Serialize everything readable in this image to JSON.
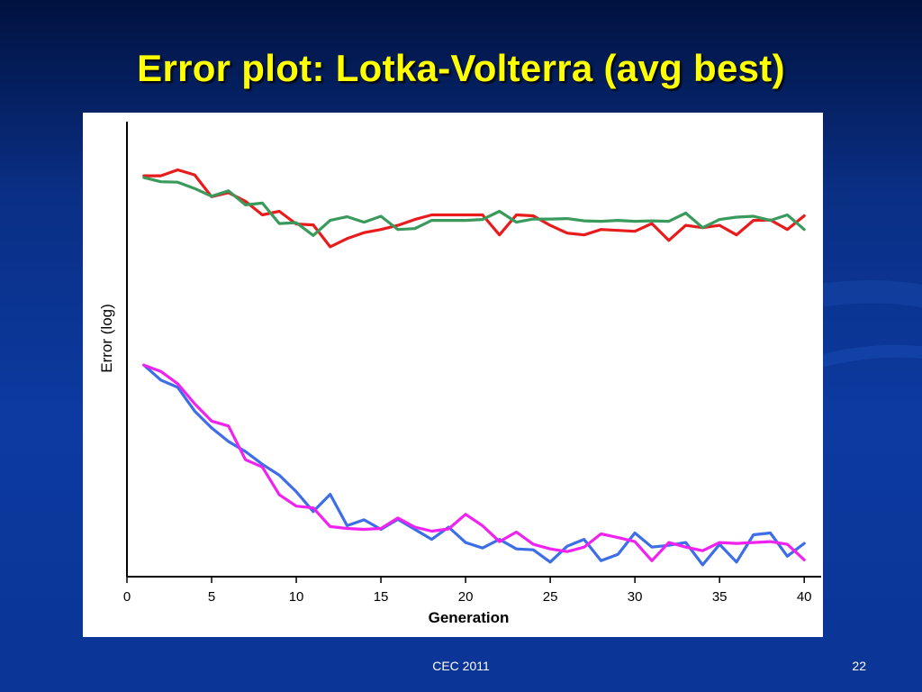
{
  "slide": {
    "title": "Error plot: Lotka-Volterra (avg best)",
    "footer": "CEC 2011",
    "page_number": "22"
  },
  "chart_data": {
    "type": "line",
    "title": "",
    "xlabel": "Generation",
    "ylabel": "Error (log)",
    "xlim": [
      0,
      41
    ],
    "ylim": [
      0,
      100
    ],
    "xticks": [
      0,
      5,
      10,
      15,
      20,
      25,
      30,
      35,
      40
    ],
    "yticks": [],
    "grid": false,
    "legend": "none",
    "series": [
      {
        "color": "#e81c1c",
        "x": [
          1,
          2,
          3,
          4,
          5,
          6,
          7,
          8,
          9,
          10,
          11,
          12,
          13,
          14,
          15,
          16,
          17,
          18,
          19,
          20,
          21,
          22,
          23,
          24,
          25,
          26,
          27,
          28,
          29,
          30,
          31,
          32,
          33,
          34,
          35,
          36,
          37,
          38,
          39,
          40
        ],
        "y": [
          88.1,
          88.1,
          89.4,
          88.3,
          83.5,
          84.4,
          82.5,
          79.5,
          80.3,
          77.5,
          77.3,
          72.5,
          74.3,
          75.6,
          76.3,
          77.2,
          78.5,
          79.5,
          79.5,
          79.5,
          79.5,
          75.1,
          79.5,
          79.3,
          77.2,
          75.5,
          75.1,
          76.3,
          76.1,
          75.9,
          77.6,
          73.9,
          77.2,
          76.7,
          77.2,
          75.1,
          78.3,
          78.4,
          76.3,
          79.3
        ]
      },
      {
        "color": "#3a9a5c",
        "x": [
          1,
          2,
          3,
          4,
          5,
          6,
          7,
          8,
          9,
          10,
          11,
          12,
          13,
          14,
          15,
          16,
          17,
          18,
          19,
          20,
          21,
          22,
          23,
          24,
          25,
          26,
          27,
          28,
          29,
          30,
          31,
          32,
          33,
          34,
          35,
          36,
          37,
          38,
          39,
          40
        ],
        "y": [
          87.7,
          86.8,
          86.7,
          85.3,
          83.6,
          84.8,
          81.7,
          82.1,
          77.6,
          77.8,
          75.0,
          78.3,
          79.1,
          77.9,
          79.2,
          76.3,
          76.5,
          78.3,
          78.3,
          78.3,
          78.5,
          80.3,
          77.9,
          78.6,
          78.6,
          78.7,
          78.2,
          78.1,
          78.3,
          78.1,
          78.2,
          78.1,
          79.9,
          76.7,
          78.5,
          79.0,
          79.2,
          78.3,
          79.5,
          76.3
        ]
      },
      {
        "color": "#3d6ee8",
        "x": [
          1,
          2,
          3,
          4,
          5,
          6,
          7,
          8,
          9,
          10,
          11,
          12,
          13,
          14,
          15,
          16,
          17,
          18,
          19,
          20,
          21,
          22,
          23,
          24,
          25,
          26,
          27,
          28,
          29,
          30,
          31,
          32,
          33,
          34,
          35,
          36,
          37,
          38,
          39,
          40
        ],
        "y": [
          46.5,
          43.2,
          41.6,
          36.4,
          32.7,
          29.7,
          27.5,
          24.7,
          22.3,
          18.7,
          14.3,
          18.1,
          11.2,
          12.5,
          10.4,
          12.6,
          10.4,
          8.2,
          10.9,
          7.5,
          6.3,
          8.2,
          6.1,
          5.9,
          3.2,
          6.7,
          8.2,
          3.5,
          4.9,
          9.6,
          6.5,
          6.9,
          7.5,
          2.6,
          7.1,
          3.2,
          9.2,
          9.6,
          4.5,
          7.3
        ]
      },
      {
        "color": "#f022f0",
        "x": [
          1,
          2,
          3,
          4,
          5,
          6,
          7,
          8,
          9,
          10,
          11,
          12,
          13,
          14,
          15,
          16,
          17,
          18,
          19,
          20,
          21,
          22,
          23,
          24,
          25,
          26,
          27,
          28,
          29,
          30,
          31,
          32,
          33,
          34,
          35,
          36,
          37,
          38,
          39,
          40
        ],
        "y": [
          46.5,
          45.1,
          42.4,
          38.0,
          34.2,
          33.1,
          25.7,
          24.1,
          18.0,
          15.5,
          15.1,
          11.0,
          10.6,
          10.4,
          10.6,
          12.9,
          10.9,
          10.0,
          10.5,
          13.7,
          11.2,
          7.7,
          9.8,
          7.1,
          6.1,
          5.5,
          6.5,
          9.4,
          8.6,
          7.7,
          3.5,
          7.5,
          6.5,
          5.7,
          7.5,
          7.3,
          7.5,
          7.7,
          7.1,
          3.7
        ]
      }
    ]
  }
}
